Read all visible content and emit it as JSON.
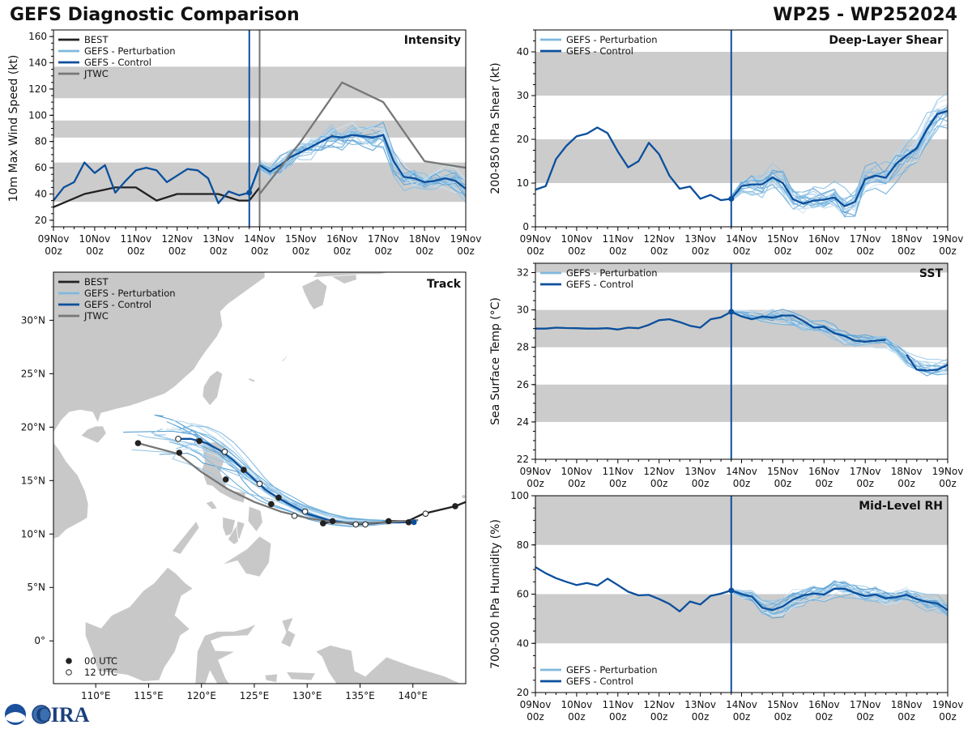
{
  "header": {
    "title_left": "GEFS Diagnostic Comparison",
    "title_right": "WP25 - WP252024"
  },
  "logo": {
    "text": "CIRA"
  },
  "colors": {
    "best": "#222222",
    "perturbation": "#7fb8de",
    "control": "#0b4f9c",
    "jtwc": "#777777",
    "band": "#cccccc",
    "land": "#c8c8c8"
  },
  "time_axis": {
    "labels": [
      "09Nov",
      "10Nov",
      "11Nov",
      "12Nov",
      "13Nov",
      "14Nov",
      "15Nov",
      "16Nov",
      "17Nov",
      "18Nov",
      "19Nov"
    ],
    "sublabel": "00z",
    "init_day": 4.75
  },
  "chart_data": [
    {
      "id": "intensity",
      "type": "line",
      "title": "Intensity",
      "ylabel": "10m Max Wind Speed (kt)",
      "xlim": [
        0,
        10
      ],
      "ylim": [
        15,
        165
      ],
      "yticks": [
        20,
        40,
        60,
        80,
        100,
        120,
        140,
        160
      ],
      "bands": [
        [
          34,
          64
        ],
        [
          83,
          96
        ],
        [
          113,
          137
        ]
      ],
      "vlines": [
        {
          "x": 4.75,
          "color": "control"
        },
        {
          "x": 5.0,
          "color": "jtwc"
        }
      ],
      "legend": [
        {
          "label": "BEST",
          "color": "best"
        },
        {
          "label": "GEFS - Perturbation",
          "color": "perturbation"
        },
        {
          "label": "GEFS - Control",
          "color": "control"
        },
        {
          "label": "JTWC",
          "color": "jtwc"
        }
      ],
      "series": [
        {
          "name": "BEST",
          "color": "best",
          "x": [
            0,
            0.75,
            1.5,
            2.0,
            2.5,
            3.0,
            3.5,
            4.0,
            4.5,
            4.75,
            5.0
          ],
          "y": [
            30,
            40,
            45,
            45,
            35,
            40,
            40,
            40,
            35,
            35,
            45
          ]
        },
        {
          "name": "GEFS - Control",
          "color": "control",
          "x": [
            0,
            0.25,
            0.5,
            0.75,
            1.0,
            1.25,
            1.5,
            1.75,
            2.0,
            2.25,
            2.5,
            2.75,
            3.0,
            3.25,
            3.5,
            3.75,
            4.0,
            4.25,
            4.5,
            4.75,
            5.0,
            5.25,
            5.5,
            5.75,
            6.0,
            6.25,
            6.5,
            6.75,
            7.0,
            7.25,
            7.5,
            7.75,
            8.0,
            8.25,
            8.5,
            8.75,
            9.0,
            9.25,
            9.5,
            9.75,
            10.0
          ],
          "y": [
            35,
            45,
            49,
            64,
            56,
            62,
            41,
            50,
            58,
            60,
            58,
            49,
            54,
            59,
            58,
            52,
            33,
            42,
            39,
            41,
            62,
            57,
            62,
            68,
            72,
            76,
            80,
            84,
            83,
            85,
            84,
            83,
            85,
            65,
            53,
            52,
            49,
            50,
            52,
            50,
            44
          ]
        },
        {
          "name": "JTWC",
          "color": "jtwc",
          "x": [
            5.0,
            6.0,
            7.0,
            8.0,
            9.0,
            10.0
          ],
          "y": [
            40,
            80,
            125,
            110,
            65,
            60
          ]
        }
      ],
      "ensemble": {
        "count": 20,
        "x_start": 4.75,
        "x_end": 10.0,
        "spread": 8
      }
    },
    {
      "id": "shear",
      "type": "line",
      "title": "Deep-Layer Shear",
      "ylabel": "200-850 hPa Shear (kt)",
      "xlim": [
        0,
        10
      ],
      "ylim": [
        0,
        45
      ],
      "yticks": [
        0,
        10,
        20,
        30,
        40
      ],
      "bands": [
        [
          10,
          20
        ],
        [
          30,
          40
        ]
      ],
      "vlines": [
        {
          "x": 4.75,
          "color": "control"
        }
      ],
      "legend": [
        {
          "label": "GEFS - Perturbation",
          "color": "perturbation"
        },
        {
          "label": "GEFS - Control",
          "color": "control"
        }
      ],
      "series": [
        {
          "name": "GEFS - Control",
          "color": "control",
          "x": [
            0,
            0.25,
            0.5,
            0.75,
            1.0,
            1.25,
            1.5,
            1.75,
            2.0,
            2.25,
            2.5,
            2.75,
            3.0,
            3.25,
            3.5,
            3.75,
            4.0,
            4.25,
            4.5,
            4.75,
            5.0,
            5.25,
            5.5,
            5.75,
            6.0,
            6.25,
            6.5,
            6.75,
            7.0,
            7.25,
            7.5,
            7.75,
            8.0,
            8.25,
            8.5,
            8.75,
            9.0,
            9.25,
            9.5,
            9.75,
            10.0
          ],
          "y": [
            8.5,
            9.3,
            15.5,
            18.5,
            20.7,
            21.3,
            22.7,
            21.4,
            17.2,
            13.6,
            15.0,
            19.2,
            16.6,
            11.7,
            8.7,
            9.2,
            6.4,
            7.3,
            6.1,
            6.4,
            9.3,
            9.7,
            9.7,
            11.3,
            10.0,
            6.3,
            5.3,
            6.0,
            6.2,
            6.7,
            4.7,
            5.7,
            10.9,
            11.7,
            11.2,
            14.4,
            16.3,
            18.0,
            22.3,
            25.8,
            26.5
          ]
        }
      ],
      "ensemble": {
        "count": 20,
        "x_start": 4.75,
        "x_end": 10.0,
        "spread": 3
      }
    },
    {
      "id": "sst",
      "type": "line",
      "title": "SST",
      "ylabel": "Sea Surface Temp (°C)",
      "xlim": [
        0,
        10
      ],
      "ylim": [
        22,
        32.5
      ],
      "yticks": [
        22,
        24,
        26,
        28,
        30,
        32
      ],
      "bands": [
        [
          24,
          26
        ],
        [
          28,
          30
        ],
        [
          32,
          32.5
        ]
      ],
      "vlines": [
        {
          "x": 4.75,
          "color": "control"
        }
      ],
      "legend": [
        {
          "label": "GEFS - Perturbation",
          "color": "perturbation"
        },
        {
          "label": "GEFS - Control",
          "color": "control"
        }
      ],
      "series": [
        {
          "name": "GEFS - Control",
          "color": "control",
          "x": [
            0,
            0.25,
            0.5,
            0.75,
            1.0,
            1.25,
            1.5,
            1.75,
            2.0,
            2.25,
            2.5,
            2.75,
            3.0,
            3.25,
            3.5,
            3.75,
            4.0,
            4.25,
            4.5,
            4.75,
            5.0,
            5.25,
            5.5,
            5.75,
            6.0,
            6.25,
            6.5,
            6.75,
            7.0,
            7.25,
            7.5,
            7.75,
            8.0,
            8.25,
            8.5
          ],
          "y": [
            29.0,
            29.0,
            29.05,
            29.03,
            29.02,
            29.0,
            29.0,
            29.02,
            28.95,
            29.05,
            29.02,
            29.2,
            29.45,
            29.5,
            29.35,
            29.15,
            29.05,
            29.5,
            29.6,
            29.9,
            29.65,
            29.5,
            29.65,
            29.58,
            29.7,
            29.7,
            29.4,
            29.05,
            29.1,
            28.75,
            28.6,
            28.35,
            28.3,
            28.35,
            28.4
          ]
        },
        {
          "name": "GEFS - Control",
          "color": "control",
          "x": [
            9.0,
            9.25,
            9.5,
            9.75,
            10.0
          ],
          "y": [
            27.6,
            26.8,
            26.75,
            26.8,
            27.05
          ]
        }
      ],
      "ensemble": {
        "count": 16,
        "x_start": 4.75,
        "x_end": 10.0,
        "spread": 0.35
      }
    },
    {
      "id": "rh",
      "type": "line",
      "title": "Mid-Level RH",
      "ylabel": "700-500 hPa Humidity (%)",
      "xlim": [
        0,
        10
      ],
      "ylim": [
        20,
        100
      ],
      "yticks": [
        20,
        40,
        60,
        80,
        100
      ],
      "bands": [
        [
          40,
          60
        ],
        [
          80,
          100
        ]
      ],
      "vlines": [
        {
          "x": 4.75,
          "color": "control"
        }
      ],
      "legend": [
        {
          "label": "GEFS - Perturbation",
          "color": "perturbation"
        },
        {
          "label": "GEFS - Control",
          "color": "control"
        }
      ],
      "series": [
        {
          "name": "GEFS - Control",
          "color": "control",
          "x": [
            0,
            0.25,
            0.5,
            0.75,
            1.0,
            1.25,
            1.5,
            1.75,
            2.0,
            2.25,
            2.5,
            2.75,
            3.0,
            3.25,
            3.5,
            3.75,
            4.0,
            4.25,
            4.5,
            4.75,
            5.0,
            5.25,
            5.5,
            5.75,
            6.0,
            6.25,
            6.5,
            6.75,
            7.0,
            7.25,
            7.5,
            7.75,
            8.0,
            8.25,
            8.5,
            8.75,
            9.0,
            9.25,
            9.5,
            9.75,
            10.0
          ],
          "y": [
            71,
            68.5,
            66.5,
            65,
            63.7,
            64.5,
            63.5,
            66.3,
            63.7,
            61,
            59.5,
            59.7,
            58,
            56,
            53,
            57,
            55.8,
            59.3,
            60.2,
            61.5,
            60,
            59,
            54.5,
            53.5,
            55,
            57.8,
            59.5,
            60.3,
            59.8,
            62.2,
            62.2,
            60.5,
            59.2,
            59.8,
            58.3,
            58.8,
            59.7,
            58,
            56.8,
            56.2,
            53.5
          ]
        }
      ],
      "ensemble": {
        "count": 20,
        "x_start": 4.75,
        "x_end": 10.0,
        "spread": 3
      }
    },
    {
      "id": "track",
      "type": "map",
      "title": "Track",
      "xlim": [
        106,
        145
      ],
      "ylim": [
        -4,
        34.5
      ],
      "xticks": [
        110,
        115,
        120,
        125,
        130,
        135,
        140
      ],
      "xtick_labels": [
        "110°E",
        "115°E",
        "120°E",
        "125°E",
        "130°E",
        "135°E",
        "140°E"
      ],
      "yticks": [
        0,
        5,
        10,
        15,
        20,
        25,
        30
      ],
      "ytick_labels": [
        "0°",
        "5°N",
        "10°N",
        "15°N",
        "20°N",
        "25°N",
        "30°N"
      ],
      "legend": [
        {
          "label": "BEST",
          "color": "best"
        },
        {
          "label": "GEFS - Perturbation",
          "color": "perturbation"
        },
        {
          "label": "GEFS - Control",
          "color": "control"
        },
        {
          "label": "JTWC",
          "color": "jtwc"
        }
      ],
      "marker_legend": [
        {
          "label": "00 UTC",
          "fill": "#222222"
        },
        {
          "label": "12 UTC",
          "fill": "#ffffff"
        }
      ],
      "series": [
        {
          "name": "BEST",
          "color": "best",
          "lon": [
            145,
            144,
            141,
            139.5,
            138,
            136.5,
            134.5,
            132.5,
            131.5
          ],
          "lat": [
            13,
            12.6,
            11.9,
            11.2,
            11.2,
            11.0,
            10.9,
            11.2,
            11.0
          ]
        },
        {
          "name": "GEFS - Control",
          "color": "control",
          "lon": [
            140.2,
            138,
            136,
            134,
            132,
            130,
            128.5,
            127.2,
            126,
            125,
            124,
            123,
            121.8,
            120.5,
            119,
            117.8
          ],
          "lat": [
            11.1,
            11.1,
            11.0,
            11.0,
            11.3,
            11.9,
            12.7,
            13.4,
            14.2,
            15.1,
            16.0,
            16.9,
            17.8,
            18.5,
            18.9,
            18.9
          ]
        },
        {
          "name": "JTWC",
          "color": "jtwc",
          "lon": [
            140.5,
            137.5,
            135,
            132.5,
            130,
            127.5,
            125,
            122.5,
            120,
            117.8,
            114
          ],
          "lat": [
            11.3,
            11.1,
            11.0,
            11.1,
            11.5,
            12.1,
            13.0,
            14.2,
            15.8,
            17.5,
            18.5
          ]
        }
      ],
      "best_markers": [
        {
          "lon": 144.0,
          "lat": 12.6,
          "utc": "00"
        },
        {
          "lon": 141.2,
          "lat": 11.9,
          "utc": "12"
        },
        {
          "lon": 139.6,
          "lat": 11.1,
          "utc": "00"
        },
        {
          "lon": 137.7,
          "lat": 11.2,
          "utc": "00"
        },
        {
          "lon": 135.5,
          "lat": 10.9,
          "utc": "12"
        },
        {
          "lon": 134.6,
          "lat": 10.9,
          "utc": "12"
        },
        {
          "lon": 132.4,
          "lat": 11.2,
          "utc": "00"
        },
        {
          "lon": 131.5,
          "lat": 11.0,
          "utc": "00"
        },
        {
          "lon": 129.8,
          "lat": 12.1,
          "utc": "12"
        },
        {
          "lon": 128.8,
          "lat": 11.7,
          "utc": "12"
        },
        {
          "lon": 127.3,
          "lat": 13.4,
          "utc": "00"
        },
        {
          "lon": 126.6,
          "lat": 12.8,
          "utc": "00"
        },
        {
          "lon": 125.5,
          "lat": 14.7,
          "utc": "12"
        },
        {
          "lon": 124.0,
          "lat": 16.0,
          "utc": "00"
        },
        {
          "lon": 122.3,
          "lat": 15.1,
          "utc": "00"
        },
        {
          "lon": 122.2,
          "lat": 17.7,
          "utc": "12"
        },
        {
          "lon": 119.8,
          "lat": 18.7,
          "utc": "00"
        },
        {
          "lon": 117.9,
          "lat": 17.6,
          "utc": "00"
        },
        {
          "lon": 117.8,
          "lat": 18.9,
          "utc": "12"
        },
        {
          "lon": 114.0,
          "lat": 18.5,
          "utc": "00"
        }
      ],
      "ensemble": {
        "count": 20
      }
    }
  ]
}
